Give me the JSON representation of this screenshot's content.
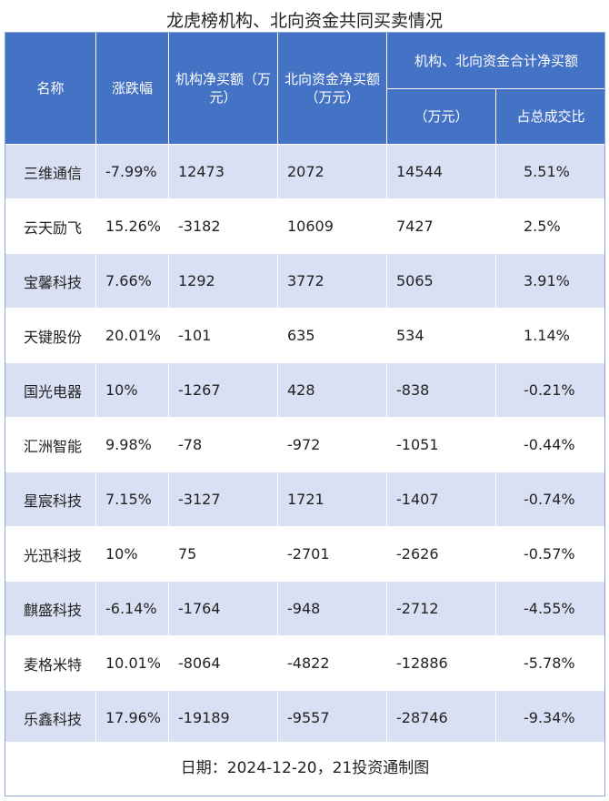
{
  "title": "龙虎榜机构、北向资金共同买卖情况",
  "headers": {
    "name": "名称",
    "change": "涨跌幅",
    "inst": "机构净买额（万元）",
    "north": "北向资金净买额（万元）",
    "combined": "机构、北向资金合计净买额",
    "combined_amount": "（万元）",
    "combined_share": "占总成交比"
  },
  "rows": [
    {
      "name": "三维通信",
      "change": "-7.99%",
      "inst": "12473",
      "north": "2072",
      "total": "14544",
      "share": "5.51%"
    },
    {
      "name": "云天励飞",
      "change": "15.26%",
      "inst": "-3182",
      "north": "10609",
      "total": "7427",
      "share": "2.5%"
    },
    {
      "name": "宝馨科技",
      "change": "7.66%",
      "inst": "1292",
      "north": "3772",
      "total": "5065",
      "share": "3.91%"
    },
    {
      "name": "天键股份",
      "change": "20.01%",
      "inst": "-101",
      "north": "635",
      "total": "534",
      "share": "1.14%"
    },
    {
      "name": "国光电器",
      "change": "10%",
      "inst": "-1267",
      "north": "428",
      "total": "-838",
      "share": "-0.21%"
    },
    {
      "name": "汇洲智能",
      "change": "9.98%",
      "inst": "-78",
      "north": "-972",
      "total": "-1051",
      "share": "-0.44%"
    },
    {
      "name": "星宸科技",
      "change": "7.15%",
      "inst": "-3127",
      "north": "1721",
      "total": "-1407",
      "share": "-0.74%"
    },
    {
      "name": "光迅科技",
      "change": "10%",
      "inst": "75",
      "north": "-2701",
      "total": "-2626",
      "share": "-0.57%"
    },
    {
      "name": "麒盛科技",
      "change": "-6.14%",
      "inst": "-1764",
      "north": "-948",
      "total": "-2712",
      "share": "-4.55%"
    },
    {
      "name": "麦格米特",
      "change": "10.01%",
      "inst": "-8064",
      "north": "-4822",
      "total": "-12886",
      "share": "-5.78%"
    },
    {
      "name": "乐鑫科技",
      "change": "17.96%",
      "inst": "-19189",
      "north": "-9557",
      "total": "-28746",
      "share": "-9.34%"
    }
  ],
  "footer": "日期：2024-12-20，21投资通制图"
}
